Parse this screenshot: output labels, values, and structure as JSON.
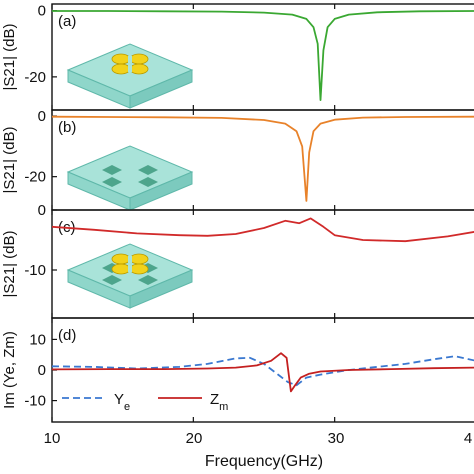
{
  "xlabel": "Frequency(GHz)",
  "x_ticks": [
    "10",
    "20",
    "30",
    "4"
  ],
  "chart_data": [
    {
      "type": "line",
      "panel": "(a)",
      "ylabel": "|S21| (dB)",
      "ylim": [
        -30,
        2
      ],
      "y_ticks": [
        "0",
        "-20"
      ],
      "series": [
        {
          "name": "",
          "color": "#3aa832",
          "x": [
            10,
            14,
            18,
            22,
            25,
            27,
            28,
            28.5,
            28.8,
            29.0,
            29.2,
            29.5,
            30,
            31,
            33,
            36,
            40
          ],
          "values": [
            -0.1,
            -0.1,
            -0.2,
            -0.3,
            -0.6,
            -1.2,
            -2.5,
            -5,
            -10,
            -27,
            -12,
            -5,
            -2.5,
            -1.2,
            -0.5,
            -0.2,
            -0.1
          ]
        }
      ]
    },
    {
      "type": "line",
      "panel": "(b)",
      "ylabel": "|S21| (dB)",
      "ylim": [
        -31,
        2
      ],
      "y_ticks": [
        "0",
        "-20"
      ],
      "series": [
        {
          "name": "",
          "color": "#e8822a",
          "x": [
            10,
            14,
            18,
            22,
            25,
            26.5,
            27.3,
            27.7,
            28.0,
            28.2,
            28.5,
            29,
            30,
            32,
            35,
            40
          ],
          "values": [
            -0.2,
            -0.3,
            -0.4,
            -0.6,
            -1.3,
            -2.5,
            -5,
            -10,
            -28,
            -12,
            -5,
            -2.5,
            -1.2,
            -0.5,
            -0.3,
            -0.2
          ]
        }
      ]
    },
    {
      "type": "line",
      "panel": "(c)",
      "ylabel": "|S21| (dB)",
      "ylim": [
        -18,
        0
      ],
      "y_ticks": [
        "0",
        "-10"
      ],
      "series": [
        {
          "name": "",
          "color": "#d12a2a",
          "x": [
            10,
            13,
            16,
            19,
            21,
            23,
            25,
            26.5,
            27.5,
            28.3,
            29.2,
            30,
            32,
            35,
            38,
            40
          ],
          "values": [
            -2.8,
            -3.3,
            -3.9,
            -4.2,
            -4.3,
            -4.0,
            -3.0,
            -1.8,
            -2.2,
            -1.4,
            -2.8,
            -4.2,
            -5.0,
            -5.2,
            -4.4,
            -3.6
          ]
        }
      ]
    },
    {
      "type": "line",
      "panel": "(d)",
      "ylabel": "Im (Ye, Zm)",
      "ylim": [
        -17,
        17
      ],
      "y_ticks": [
        "10",
        "0",
        "-10"
      ],
      "series": [
        {
          "name": "Y",
          "subscript": "e",
          "color": "#3a78d0",
          "dash": true,
          "x": [
            10,
            13,
            16,
            19,
            21,
            23,
            24,
            25,
            26,
            26.7,
            27.3,
            28,
            29,
            31,
            33,
            35,
            37,
            38.5,
            40
          ],
          "values": [
            1.2,
            1.0,
            0.5,
            1.0,
            2.0,
            3.8,
            4.0,
            2.0,
            -1.5,
            -4.0,
            -5.0,
            -2.5,
            -1.5,
            0.0,
            1.0,
            2.0,
            3.5,
            4.5,
            3.0
          ]
        },
        {
          "name": "Z",
          "subscript": "m",
          "color": "#c42020",
          "dash": false,
          "x": [
            10,
            14,
            18,
            21,
            23,
            24.5,
            25.5,
            26.2,
            26.6,
            26.9,
            27.2,
            27.6,
            28.2,
            29,
            31,
            34,
            37,
            40
          ],
          "values": [
            0.2,
            0.3,
            0.3,
            0.5,
            0.8,
            1.5,
            3.0,
            5.5,
            4.0,
            -7.0,
            -5.0,
            -2.5,
            -1.2,
            -0.5,
            0.0,
            0.3,
            0.6,
            0.8
          ]
        }
      ]
    }
  ]
}
